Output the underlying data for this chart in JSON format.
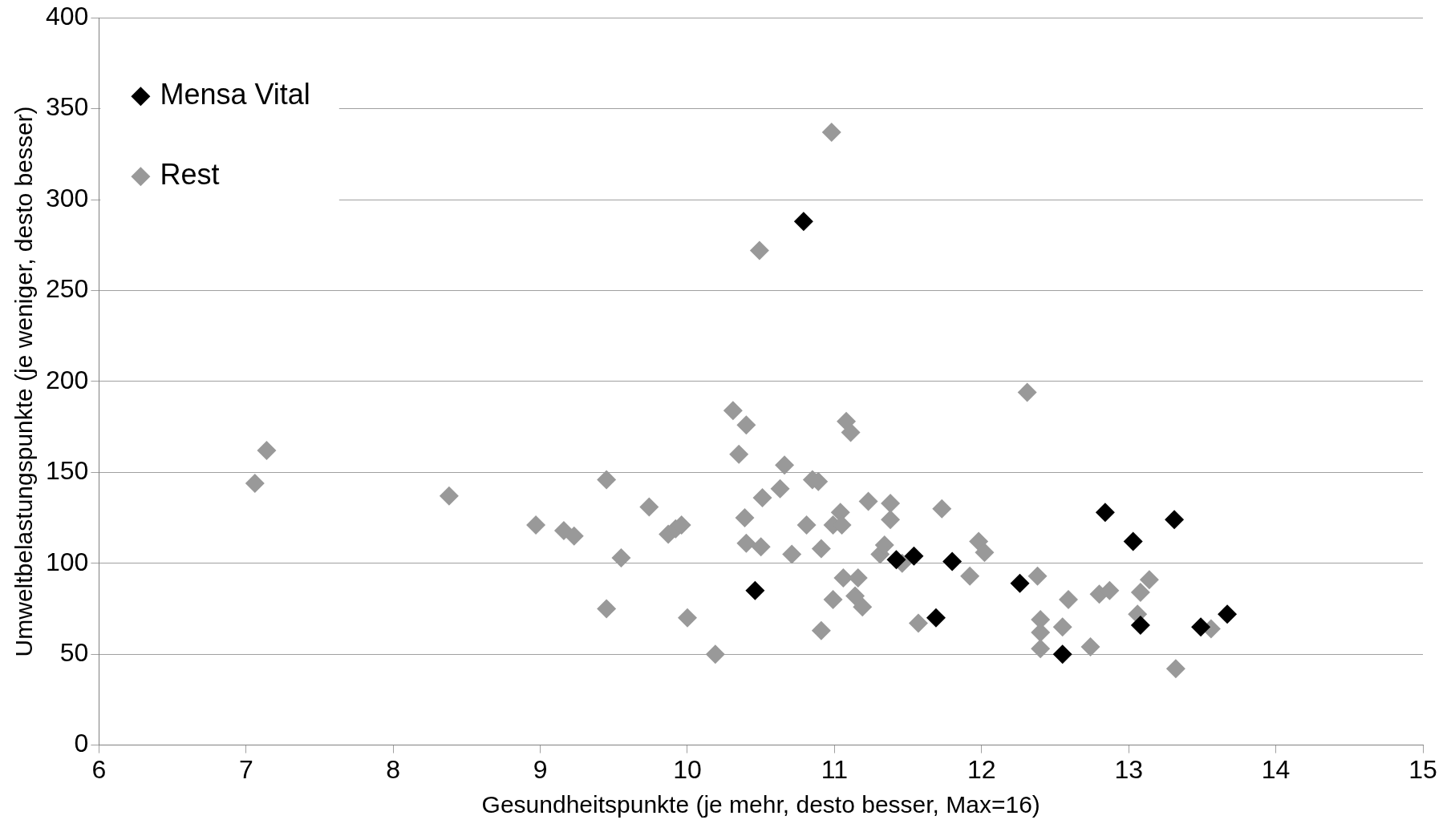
{
  "chart_data": {
    "type": "scatter",
    "xlabel": "Gesundheitspunkte (je mehr, desto besser, Max=16)",
    "ylabel": "Umweltbelastungspunkte (je weniger, desto besser)",
    "xlim": [
      6,
      15
    ],
    "xticks": [
      6,
      7,
      8,
      9,
      10,
      11,
      12,
      13,
      14,
      15
    ],
    "ylim": [
      0,
      400
    ],
    "yticks": [
      0,
      50,
      100,
      150,
      200,
      250,
      300,
      350,
      400
    ],
    "grid": "y",
    "legend": "top left",
    "marker": "diamond",
    "series": [
      {
        "name": "Mensa Vital",
        "color": "#000000",
        "x": [
          10.79,
          10.46,
          11.42,
          11.54,
          11.69,
          11.8,
          12.26,
          12.55,
          12.84,
          13.03,
          13.08,
          13.31,
          13.49,
          13.67
        ],
        "values": [
          288,
          85,
          102,
          104,
          70,
          101,
          89,
          50,
          128,
          112,
          66,
          124,
          65,
          72
        ]
      },
      {
        "name": "Rest",
        "color": "#999999",
        "x": [
          7.06,
          7.14,
          8.38,
          8.97,
          9.16,
          9.23,
          9.45,
          9.45,
          9.55,
          9.74,
          9.87,
          9.92,
          9.96,
          10.0,
          10.19,
          10.31,
          10.35,
          10.4,
          10.39,
          10.4,
          10.49,
          10.5,
          10.51,
          10.63,
          10.66,
          10.71,
          10.81,
          10.85,
          10.89,
          10.91,
          10.91,
          10.98,
          10.99,
          10.99,
          11.04,
          11.05,
          11.08,
          11.11,
          11.06,
          11.14,
          11.16,
          11.19,
          11.23,
          11.31,
          11.34,
          11.38,
          11.38,
          11.46,
          11.57,
          11.73,
          11.92,
          11.98,
          12.02,
          12.31,
          12.38,
          12.4,
          12.4,
          12.4,
          12.55,
          12.59,
          12.74,
          12.8,
          12.87,
          13.06,
          13.08,
          13.14,
          13.32,
          13.56
        ],
        "values": [
          144,
          162,
          137,
          121,
          118,
          115,
          146,
          75,
          103,
          131,
          116,
          119,
          121,
          70,
          50,
          184,
          160,
          176,
          125,
          111,
          272,
          109,
          136,
          141,
          154,
          105,
          121,
          146,
          145,
          63,
          108,
          337,
          80,
          121,
          128,
          121,
          178,
          172,
          92,
          82,
          92,
          76,
          134,
          105,
          110,
          133,
          124,
          100,
          67,
          130,
          93,
          112,
          106,
          194,
          93,
          69,
          62,
          53,
          65,
          80,
          54,
          83,
          85,
          72,
          84,
          91,
          42,
          64
        ]
      }
    ]
  }
}
